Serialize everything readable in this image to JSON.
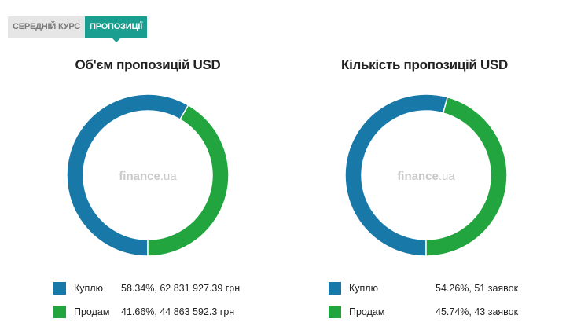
{
  "tabs": [
    {
      "label": "СЕРЕДНІЙ КУРС",
      "active": false
    },
    {
      "label": "ПРОПОЗИЦІЇ",
      "active": true
    }
  ],
  "watermark": {
    "main": "finance",
    "suffix": ".ua"
  },
  "colors": {
    "buy": "#1878a8",
    "sell": "#22a53e",
    "accent": "#1a9e8f"
  },
  "chart_data": [
    {
      "type": "pie",
      "donut": true,
      "title": "Об'єм пропозицій USD",
      "categories": [
        "Куплю",
        "Продам"
      ],
      "values": [
        58.34,
        41.66
      ],
      "legend": [
        {
          "label": "Куплю",
          "value": "58.34%, 62 831 927.39 грн"
        },
        {
          "label": "Продам",
          "value": "41.66%, 44 863 592.3 грн"
        }
      ]
    },
    {
      "type": "pie",
      "donut": true,
      "title": "Кількість пропозицій USD",
      "categories": [
        "Куплю",
        "Продам"
      ],
      "values": [
        54.26,
        45.74
      ],
      "legend": [
        {
          "label": "Куплю",
          "value": "54.26%, 51 заявок"
        },
        {
          "label": "Продам",
          "value": "45.74%, 43 заявок"
        }
      ]
    }
  ]
}
